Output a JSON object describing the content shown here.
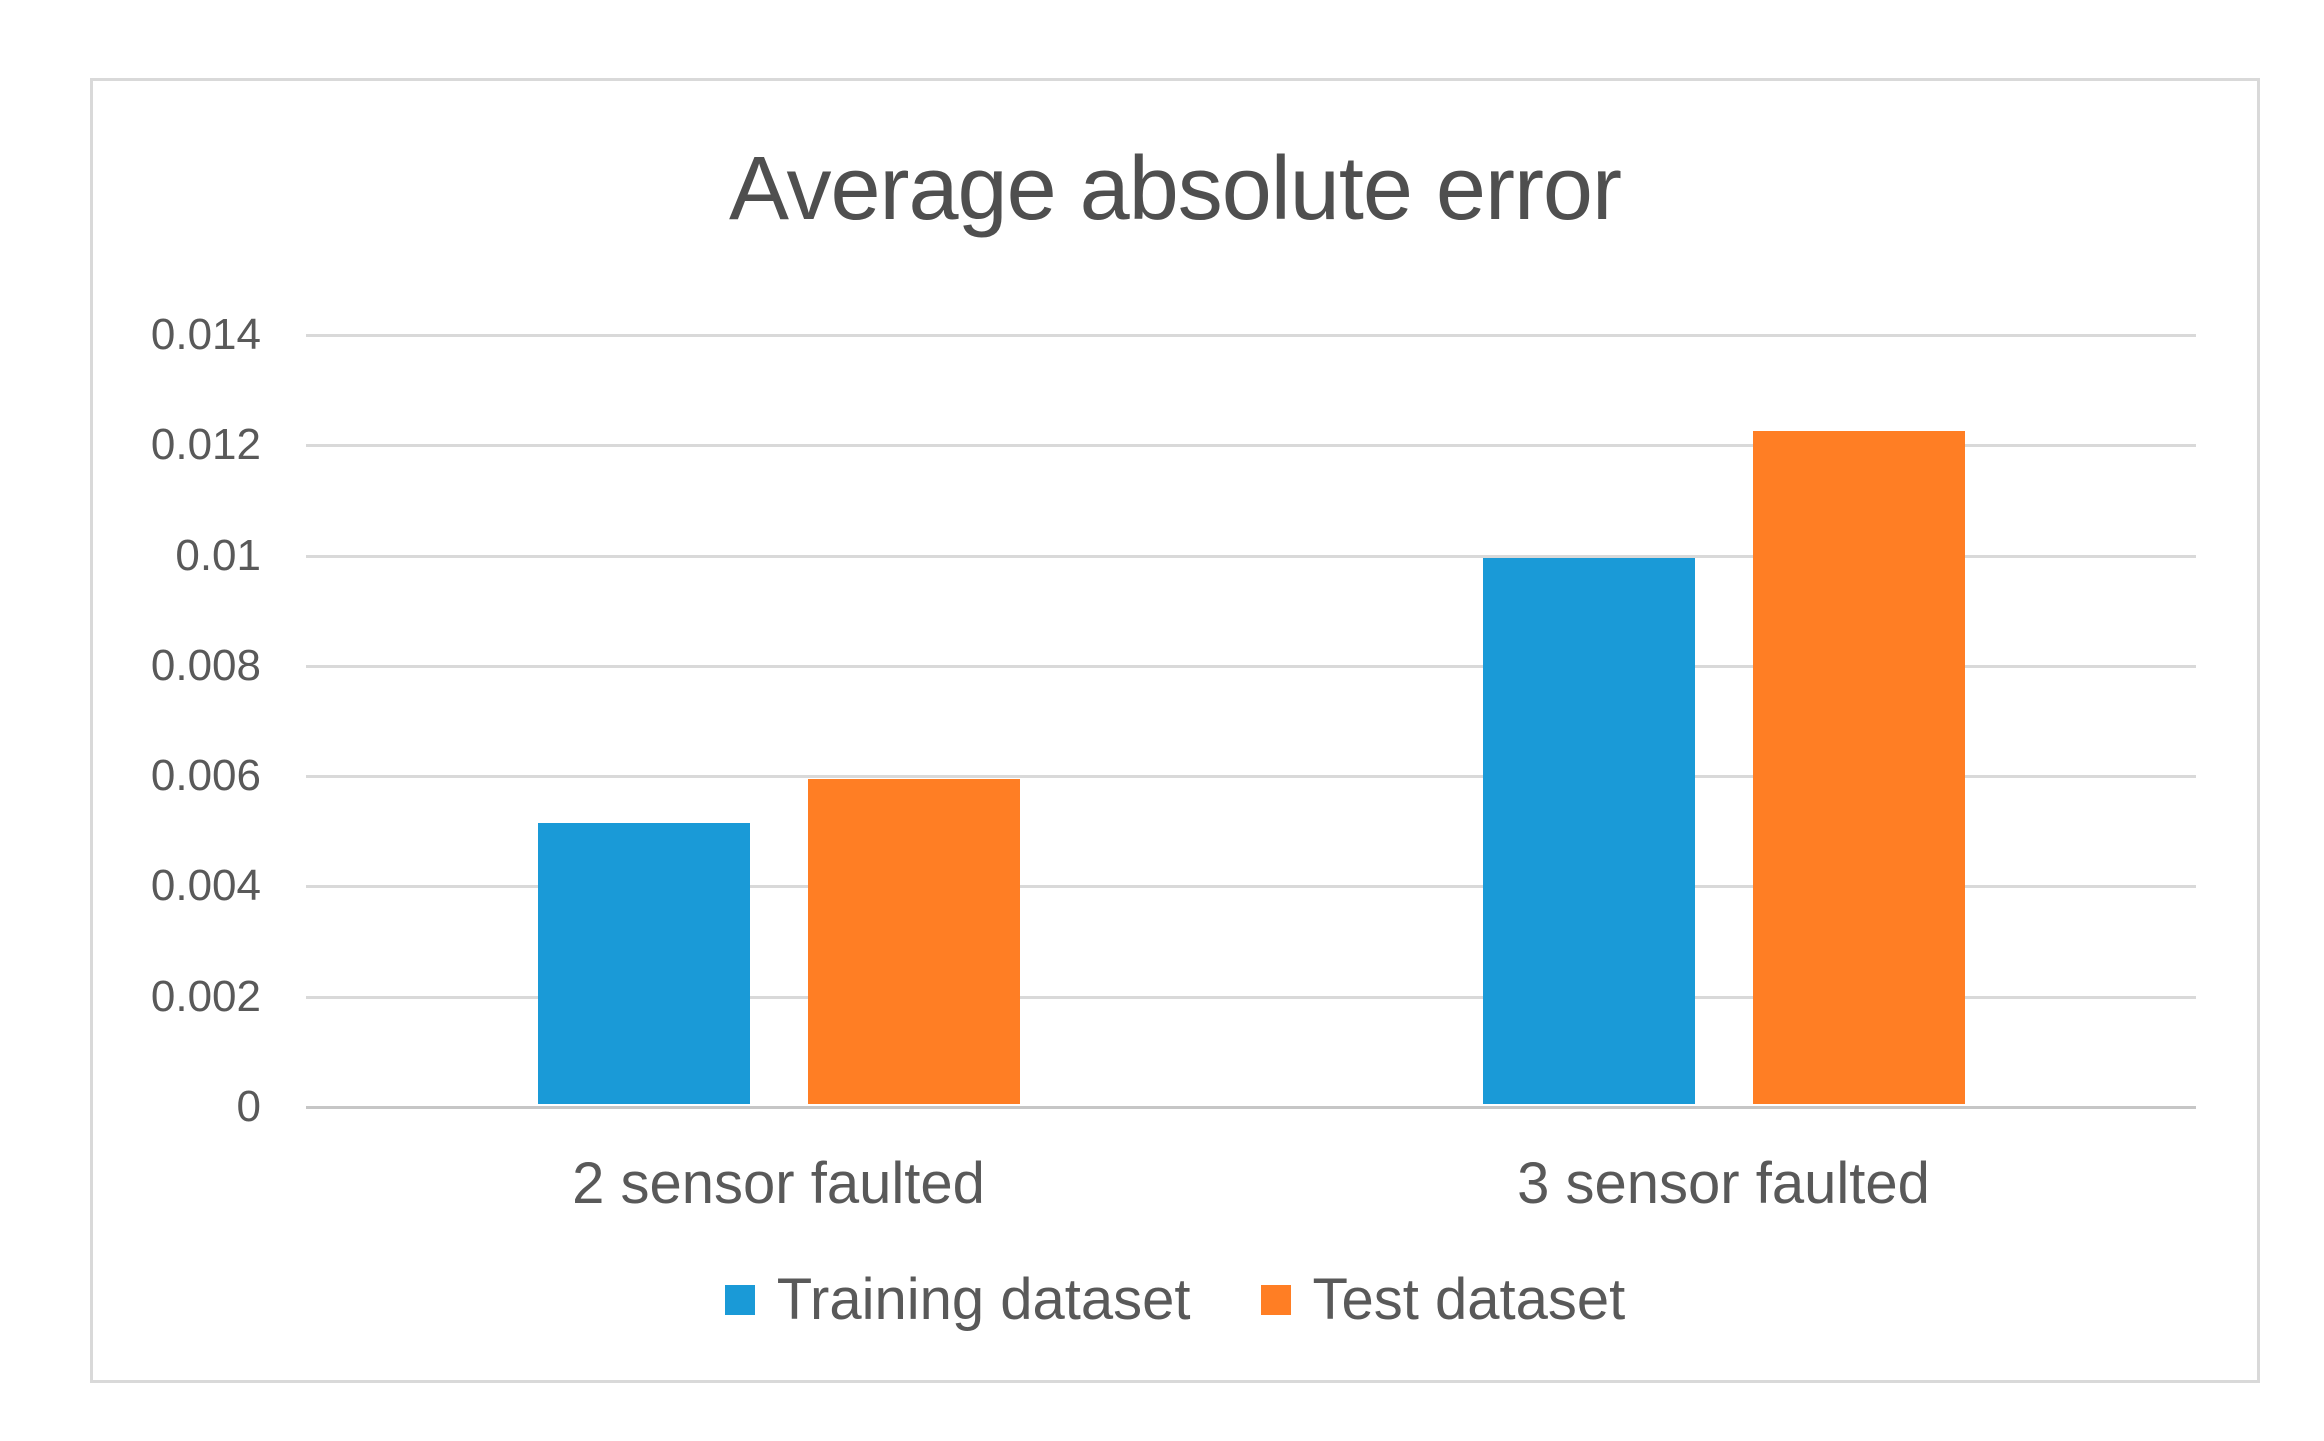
{
  "page": {
    "background": "#ffffff"
  },
  "chart": {
    "frame_border_color": "#d9d9d9",
    "plot_background": "#ffffff",
    "gridline_color": "#d9d9d9",
    "axis_line_color": "#c6c6c6",
    "title_color": "#4f4f4f",
    "label_color": "#595959"
  },
  "chart_data": {
    "type": "bar",
    "title": "Average absolute error",
    "categories": [
      "2 sensor faulted",
      "3 sensor faulted"
    ],
    "series": [
      {
        "name": "Training dataset",
        "color": "#1a9ad7",
        "values": [
          0.0051,
          0.0099
        ]
      },
      {
        "name": "Test dataset",
        "color": "#ff7e24",
        "values": [
          0.0059,
          0.0122
        ]
      }
    ],
    "xlabel": "",
    "ylabel": "",
    "ylim": [
      0,
      0.014
    ],
    "yticks": [
      0,
      0.002,
      0.004,
      0.006,
      0.008,
      0.01,
      0.012,
      0.014
    ],
    "ytick_labels": [
      "0",
      "0.002",
      "0.004",
      "0.006",
      "0.008",
      "0.01",
      "0.012",
      "0.014"
    ],
    "grid": true,
    "legend_position": "bottom"
  }
}
